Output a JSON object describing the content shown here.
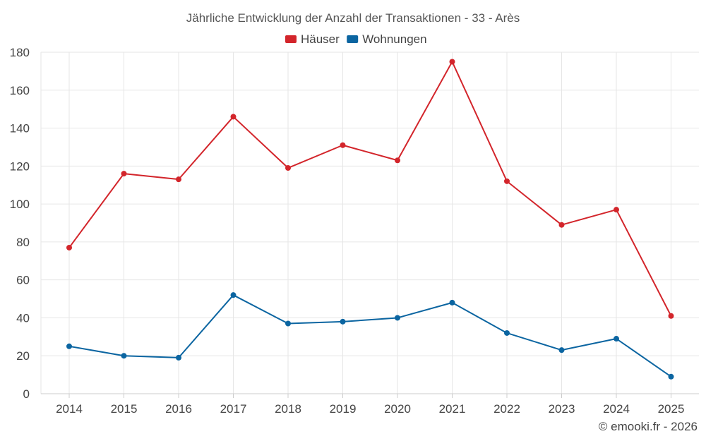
{
  "chart_data": {
    "type": "line",
    "title": "Jährliche Entwicklung der Anzahl der Transaktionen - 33 - Arès",
    "xlabel": "",
    "ylabel": "",
    "categories": [
      "2014",
      "2015",
      "2016",
      "2017",
      "2018",
      "2019",
      "2020",
      "2021",
      "2022",
      "2023",
      "2024",
      "2025"
    ],
    "ylim": [
      0,
      180
    ],
    "yticks": [
      0,
      20,
      40,
      60,
      80,
      100,
      120,
      140,
      160,
      180
    ],
    "grid": true,
    "legend_position": "top-center",
    "series": [
      {
        "name": "Häuser",
        "color": "#d3252b",
        "values": [
          77,
          116,
          113,
          146,
          119,
          131,
          123,
          175,
          112,
          89,
          97,
          41
        ]
      },
      {
        "name": "Wohnungen",
        "color": "#0b65a1",
        "values": [
          25,
          20,
          19,
          52,
          37,
          38,
          40,
          48,
          32,
          23,
          29,
          9
        ]
      }
    ]
  },
  "credit": "© emooki.fr - 2026"
}
